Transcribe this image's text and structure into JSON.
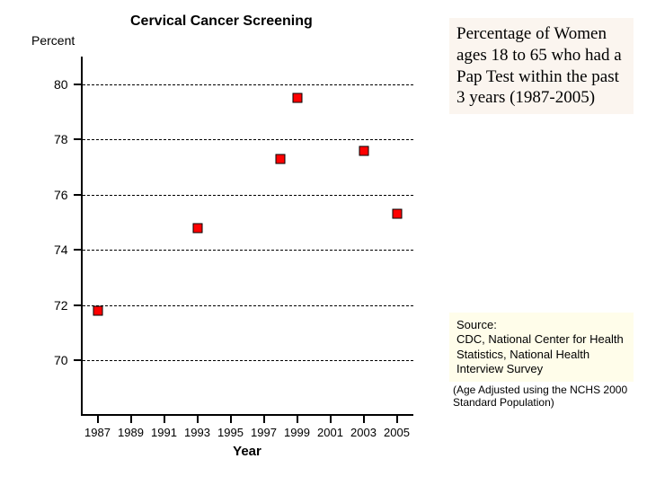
{
  "chart": {
    "type": "line",
    "title": "Cervical Cancer Screening",
    "y_axis_label": "Percent",
    "x_axis_title": "Year",
    "xlim": [
      1986,
      2006
    ],
    "ylim": [
      68,
      81
    ],
    "y_ticks": [
      70,
      72,
      74,
      76,
      78,
      80
    ],
    "x_ticks": [
      1987,
      1989,
      1991,
      1993,
      1995,
      1997,
      1999,
      2001,
      2003,
      2005
    ],
    "grid_dashed": true,
    "grid_color": "#000000",
    "background_color": "#ffffff",
    "marker_fill": "#ff0000",
    "marker_border": "#000000",
    "marker_size": 11,
    "axis_color": "#000000",
    "tick_fontsize": 14,
    "title_fontsize": 16,
    "series": {
      "x": [
        1987,
        1993,
        1998,
        1999,
        2003,
        2005
      ],
      "y": [
        71.8,
        74.8,
        77.3,
        79.5,
        77.6,
        75.3
      ]
    }
  },
  "description": "Percentage of Women ages 18 to 65 who had a Pap Test within the past 3 years (1987-2005)",
  "description_bg": "#fbf5ef",
  "source_label": "Source:",
  "source_text": "CDC, National Center for Health Statistics, National Health Interview Survey",
  "source_bg": "#fffdea",
  "note": "(Age Adjusted using the NCHS 2000 Standard Population)"
}
